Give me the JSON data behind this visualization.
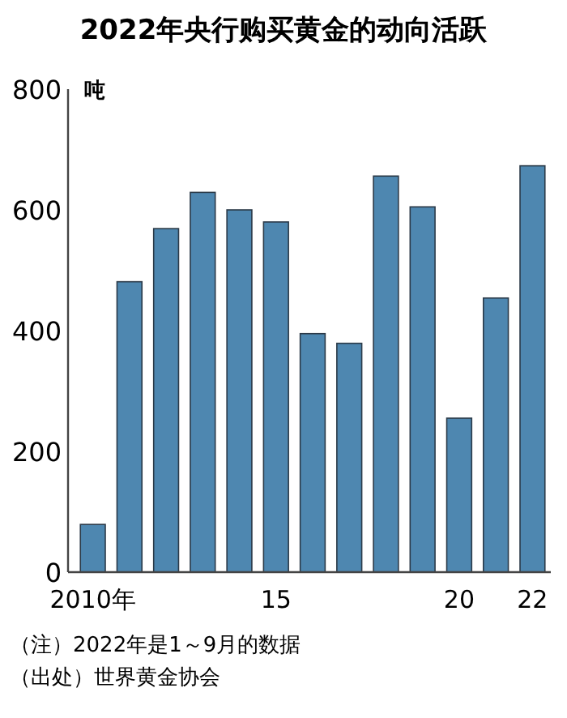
{
  "chart_data": {
    "type": "bar",
    "title": "2022年央行购买黄金的动向活跃",
    "ylabel": "吨",
    "categories": [
      "2010年",
      null,
      null,
      null,
      null,
      "15",
      null,
      null,
      null,
      null,
      "20",
      null,
      "22"
    ],
    "values": [
      79,
      481,
      569,
      629,
      600,
      580,
      395,
      379,
      656,
      605,
      255,
      454,
      673
    ],
    "color": "#4e87b0",
    "ylim": [
      0,
      800
    ],
    "yticks": [
      0,
      200,
      400,
      600,
      800
    ],
    "grid": false,
    "annotations": [
      "（注）2022年是1～9月的数据",
      "（出处）世界黄金协会"
    ]
  }
}
